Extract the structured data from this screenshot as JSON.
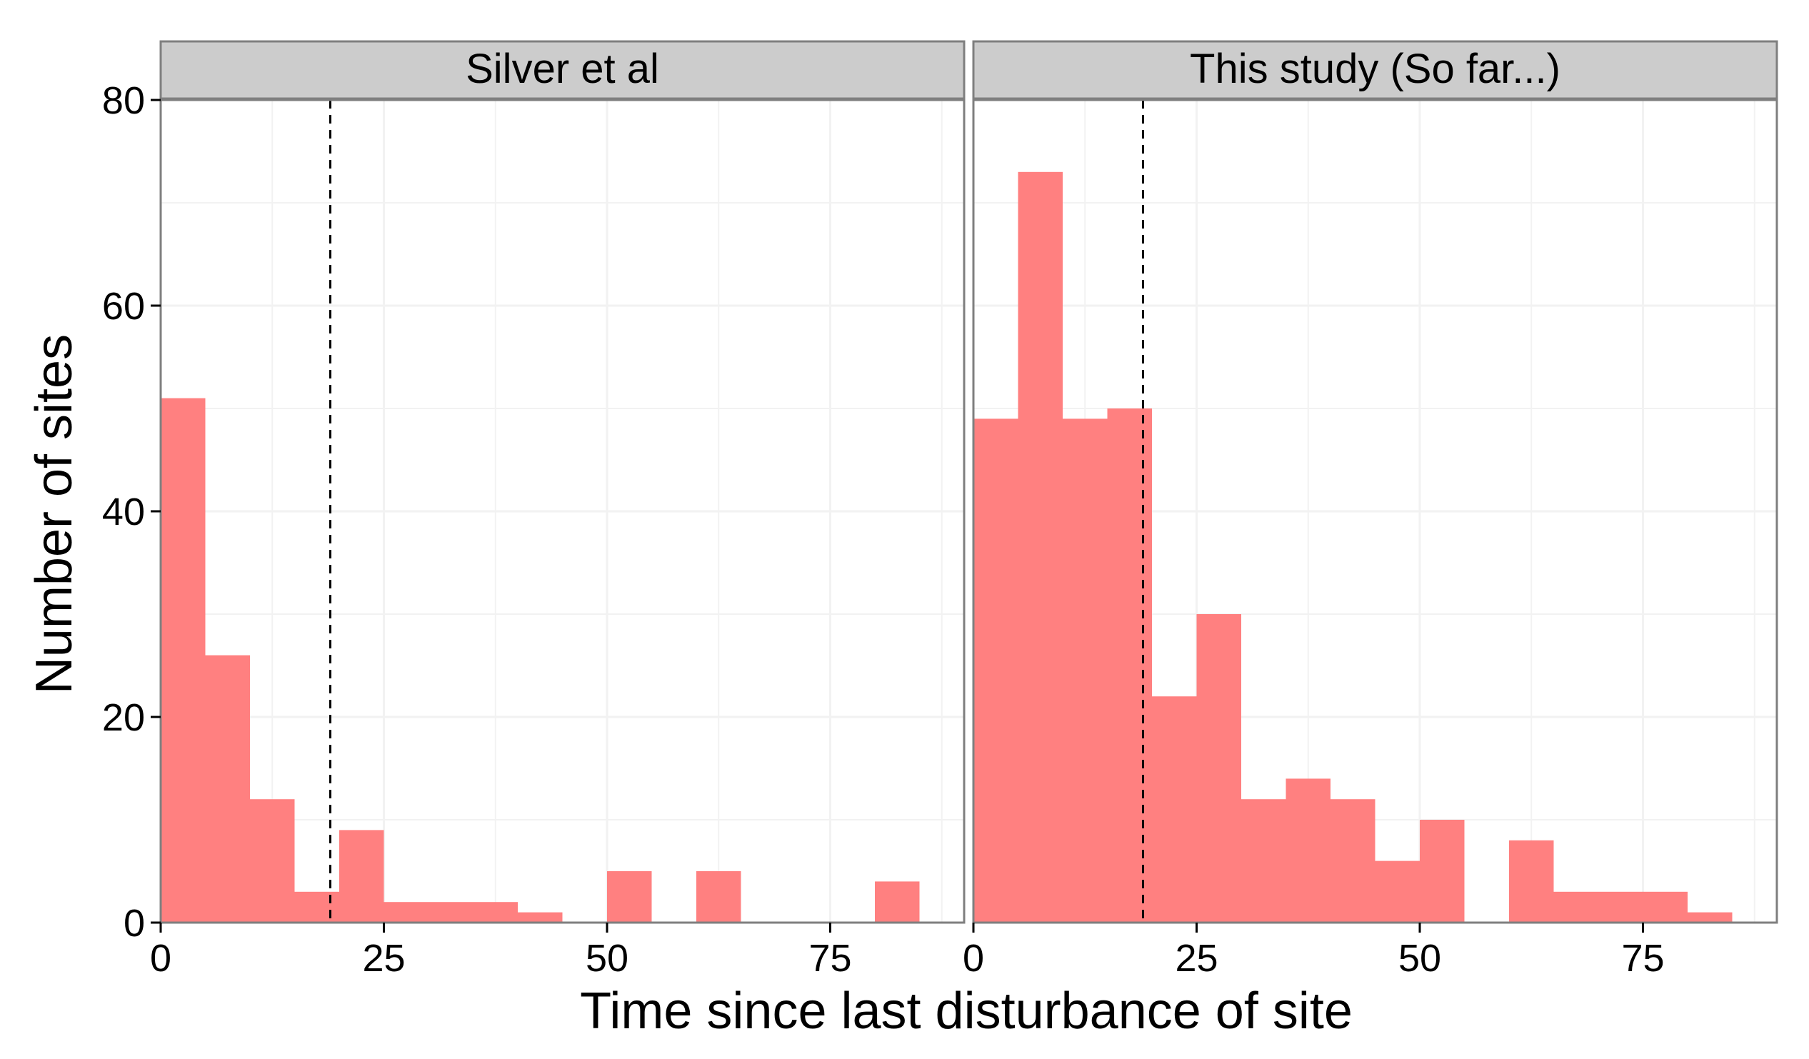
{
  "chart_data": {
    "type": "bar",
    "subtype": "faceted-histogram",
    "xlabel": "Time since last disturbance of site",
    "ylabel": "Number of sites",
    "xlim": [
      0,
      90
    ],
    "ylim": [
      0,
      80
    ],
    "x_ticks": [
      0,
      25,
      50,
      75
    ],
    "y_ticks": [
      0,
      20,
      40,
      60,
      80
    ],
    "bin_width": 5,
    "bar_color": "#FF8080",
    "grid": true,
    "reference_line": {
      "x": 19,
      "style": "dashed"
    },
    "panels": [
      {
        "title": "Silver et al",
        "bins": [
          {
            "x0": 0,
            "x1": 5,
            "count": 51
          },
          {
            "x0": 5,
            "x1": 10,
            "count": 26
          },
          {
            "x0": 10,
            "x1": 15,
            "count": 12
          },
          {
            "x0": 15,
            "x1": 20,
            "count": 3
          },
          {
            "x0": 20,
            "x1": 25,
            "count": 9
          },
          {
            "x0": 25,
            "x1": 30,
            "count": 2
          },
          {
            "x0": 30,
            "x1": 35,
            "count": 2
          },
          {
            "x0": 35,
            "x1": 40,
            "count": 2
          },
          {
            "x0": 40,
            "x1": 45,
            "count": 1
          },
          {
            "x0": 45,
            "x1": 50,
            "count": 0
          },
          {
            "x0": 50,
            "x1": 55,
            "count": 5
          },
          {
            "x0": 55,
            "x1": 60,
            "count": 0
          },
          {
            "x0": 60,
            "x1": 65,
            "count": 5
          },
          {
            "x0": 65,
            "x1": 70,
            "count": 0
          },
          {
            "x0": 70,
            "x1": 75,
            "count": 0
          },
          {
            "x0": 75,
            "x1": 80,
            "count": 0
          },
          {
            "x0": 80,
            "x1": 85,
            "count": 4
          }
        ]
      },
      {
        "title": "This study (So far...)",
        "bins": [
          {
            "x0": 0,
            "x1": 5,
            "count": 49
          },
          {
            "x0": 5,
            "x1": 10,
            "count": 73
          },
          {
            "x0": 10,
            "x1": 15,
            "count": 49
          },
          {
            "x0": 15,
            "x1": 20,
            "count": 50
          },
          {
            "x0": 20,
            "x1": 25,
            "count": 22
          },
          {
            "x0": 25,
            "x1": 30,
            "count": 30
          },
          {
            "x0": 30,
            "x1": 35,
            "count": 12
          },
          {
            "x0": 35,
            "x1": 40,
            "count": 14
          },
          {
            "x0": 40,
            "x1": 45,
            "count": 12
          },
          {
            "x0": 45,
            "x1": 50,
            "count": 6
          },
          {
            "x0": 50,
            "x1": 55,
            "count": 10
          },
          {
            "x0": 55,
            "x1": 60,
            "count": 0
          },
          {
            "x0": 60,
            "x1": 65,
            "count": 8
          },
          {
            "x0": 65,
            "x1": 70,
            "count": 3
          },
          {
            "x0": 70,
            "x1": 75,
            "count": 3
          },
          {
            "x0": 75,
            "x1": 80,
            "count": 3
          },
          {
            "x0": 80,
            "x1": 85,
            "count": 1
          }
        ]
      }
    ]
  }
}
